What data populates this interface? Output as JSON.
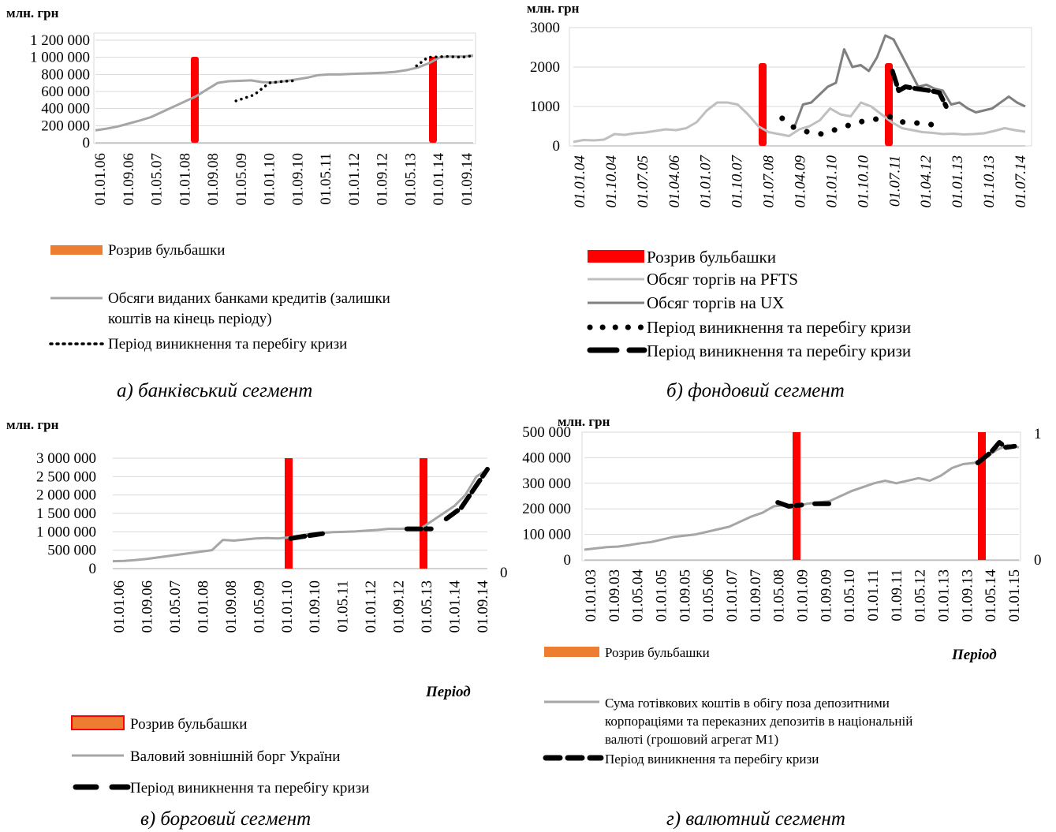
{
  "chart_data": [
    {
      "type": "line",
      "panel": "a",
      "unit_label": "млн. грн",
      "caption": "а) банківський сегмент",
      "yticks": [
        "0",
        "200 000",
        "400 000",
        "600 000",
        "800 000",
        "1 000 000",
        "1 200 000"
      ],
      "ylim": [
        0,
        1200000
      ],
      "xticks": [
        "01.01.06",
        "01.09.06",
        "01.05.07",
        "01.01.08",
        "01.09.08",
        "01.05.09",
        "01.01.10",
        "01.09.10",
        "01.05.11",
        "01.01.12",
        "01.09.12",
        "01.05.13",
        "01.01.14",
        "01.09.14"
      ],
      "bubble_bursts": [
        "01.09.08",
        "01.01.14"
      ],
      "series": [
        {
          "name": "Обсяги виданих банками кредитів (залишки коштів на кінець періоду)",
          "style": "line",
          "color": "#a6a6a6",
          "values": [
            145000,
            165000,
            190000,
            225000,
            260000,
            300000,
            360000,
            420000,
            480000,
            540000,
            620000,
            700000,
            720000,
            725000,
            730000,
            710000,
            705000,
            720000,
            740000,
            760000,
            790000,
            800000,
            800000,
            805000,
            810000,
            815000,
            820000,
            830000,
            850000,
            880000,
            930000,
            1000000,
            1010000,
            1010000,
            1020000
          ]
        },
        {
          "name": "Період виникнення та перебігу кризи",
          "style": "dotted",
          "color": "#000000",
          "segments": [
            [
              [
                0.372,
                490000
              ],
              [
                0.42,
                560000
              ],
              [
                0.46,
                700000
              ],
              [
                0.5,
                720000
              ],
              [
                0.53,
                725000
              ]
            ],
            [
              [
                0.85,
                900000
              ],
              [
                0.88,
                1000000
              ],
              [
                0.93,
                1010000
              ],
              [
                0.97,
                1000000
              ],
              [
                1.0,
                1020000
              ]
            ]
          ]
        }
      ],
      "legend": [
        "Розрив бульбашки",
        "Обсяги виданих банками кредитів (залишки коштів на кінець періоду)",
        "Період виникнення та перебігу кризи"
      ]
    },
    {
      "type": "line",
      "panel": "b",
      "unit_label": "млн. грн",
      "caption": "б) фондовий сегмент",
      "yticks": [
        "0",
        "1000",
        "2000",
        "3000"
      ],
      "ylim": [
        0,
        3000
      ],
      "xticks": [
        "01.01.04",
        "01.10.04",
        "01.07.05",
        "01.04.06",
        "01.01.07",
        "01.10.07",
        "01.07.08",
        "01.04.09",
        "01.01.10",
        "01.10.10",
        "01.07.11",
        "01.04.12",
        "01.01.13",
        "01.10.13",
        "01.07.14"
      ],
      "bubble_bursts": [
        "01.07.08",
        "01.07.11"
      ],
      "series": [
        {
          "name": "Обсяг торгів на PFTS",
          "style": "line",
          "color": "#bfbfbf",
          "values": [
            100,
            150,
            140,
            160,
            300,
            280,
            320,
            340,
            380,
            420,
            400,
            450,
            600,
            900,
            1100,
            1100,
            1050,
            800,
            500,
            350,
            300,
            250,
            420,
            500,
            650,
            950,
            800,
            750,
            1100,
            1000,
            800,
            600,
            450,
            400,
            350,
            330,
            300,
            310,
            290,
            300,
            320,
            380,
            450,
            400,
            360
          ]
        },
        {
          "name": "Обсяг торгів на UX",
          "style": "line",
          "color": "#7f7f7f",
          "values": [
            500,
            1050,
            1100,
            1300,
            1500,
            1600,
            2450,
            2000,
            2050,
            1900,
            2250,
            2800,
            2700,
            2300,
            1900,
            1500,
            1550,
            1450,
            1400,
            1050,
            1100,
            950,
            850,
            900,
            950,
            1100,
            1250,
            1100,
            1000
          ]
        },
        {
          "name": "Період виникнення та перебігу кризи",
          "style": "dots",
          "color": "#000000",
          "points": [
            [
              0.462,
              700
            ],
            [
              0.49,
              450
            ],
            [
              0.52,
              350
            ],
            [
              0.55,
              300
            ],
            [
              0.63,
              600
            ],
            [
              0.705,
              750
            ],
            [
              0.73,
              600
            ],
            [
              0.76,
              580
            ],
            [
              0.79,
              550
            ],
            [
              0.82,
              400
            ]
          ]
        },
        {
          "name": "Період виникнення та перебігу кризи",
          "style": "dashed",
          "color": "#000000",
          "points": [
            [
              0.706,
              1900
            ],
            [
              0.72,
              1400
            ],
            [
              0.735,
              1500
            ],
            [
              0.76,
              1450
            ],
            [
              0.79,
              1400
            ],
            [
              0.81,
              1350
            ],
            [
              0.825,
              1000
            ]
          ]
        }
      ],
      "legend": [
        "Розрив бульбашки",
        "Обсяг торгів на PFTS",
        "Обсяг торгів на UX",
        "Період виникнення та перебігу кризи",
        "Період виникнення та перебігу кризи"
      ]
    },
    {
      "type": "line",
      "panel": "c",
      "unit_label": "млн. грн",
      "caption": "в) борговий сегмент",
      "x_title": "Період",
      "yticks": [
        "0",
        "500 000",
        "1 000 000",
        "1 500 000",
        "2 000 000",
        "2 500 000",
        "3 000 000"
      ],
      "ylim": [
        0,
        3000000
      ],
      "secondary_y_ticks": [
        "0"
      ],
      "xticks": [
        "01.01.06",
        "01.09.06",
        "01.05.07",
        "01.01.08",
        "01.09.08",
        "01.05.09",
        "01.01.10",
        "01.09.10",
        "01.05.11",
        "01.01.12",
        "01.09.12",
        "01.05.13",
        "01.01.14",
        "01.09.14"
      ],
      "bubble_bursts": [
        "01.01.10",
        "01.05.13"
      ],
      "series": [
        {
          "name": "Валовий зовнішній борг України",
          "style": "line",
          "color": "#a6a6a6",
          "values": [
            200000,
            210000,
            230000,
            260000,
            300000,
            340000,
            380000,
            420000,
            460000,
            500000,
            780000,
            760000,
            790000,
            820000,
            830000,
            820000,
            850000,
            900000,
            950000,
            970000,
            990000,
            1000000,
            1010000,
            1030000,
            1050000,
            1080000,
            1080000,
            1090000,
            1100000,
            1300000,
            1500000,
            1700000,
            2000000,
            2500000,
            2700000
          ]
        },
        {
          "name": "Період виникнення та перебігу кризи",
          "style": "dashed",
          "color": "#000000",
          "segments": [
            [
              [
                0.475,
                820000
              ],
              [
                0.52,
                890000
              ],
              [
                0.56,
                950000
              ]
            ],
            [
              [
                0.785,
                1080000
              ],
              [
                0.85,
                1080000
              ]
            ],
            [
              [
                0.89,
                1350000
              ],
              [
                0.93,
                1650000
              ],
              [
                0.96,
                2100000
              ],
              [
                1.0,
                2700000
              ]
            ]
          ]
        }
      ],
      "legend": [
        "Розрив бульбашки",
        "Валовий зовнішній борг України",
        "Період виникнення та перебігу кризи"
      ]
    },
    {
      "type": "line",
      "panel": "d",
      "unit_label": "млн. грн",
      "caption": "г) валютний сегмент",
      "x_title": "Період",
      "yticks": [
        "0",
        "100 000",
        "200 000",
        "300 000",
        "400 000",
        "500 000"
      ],
      "ylim": [
        0,
        500000
      ],
      "secondary_y_ticks": [
        "0",
        "1"
      ],
      "xticks": [
        "01.01.03",
        "01.09.03",
        "01.05.04",
        "01.01.05",
        "01.09.05",
        "01.05.06",
        "01.01.07",
        "01.09.07",
        "01.05.08",
        "01.01.09",
        "01.09.09",
        "01.05.10",
        "01.01.11",
        "01.09.11",
        "01.05.12",
        "01.01.13",
        "01.09.13",
        "01.05.14",
        "01.01.15"
      ],
      "bubble_bursts": [
        "01.09.08",
        "01.01.14"
      ],
      "series": [
        {
          "name": "Сума готівкових коштів в обігу поза депозитними корпораціями та переказних депозитів в національній валюті (грошовий агрегат М1)",
          "style": "line",
          "color": "#a6a6a6",
          "values": [
            40000,
            45000,
            50000,
            52000,
            58000,
            65000,
            70000,
            80000,
            90000,
            95000,
            100000,
            110000,
            120000,
            130000,
            150000,
            170000,
            185000,
            210000,
            215000,
            210000,
            220000,
            225000,
            230000,
            250000,
            270000,
            285000,
            300000,
            310000,
            300000,
            310000,
            320000,
            310000,
            330000,
            360000,
            375000,
            380000,
            400000,
            430000,
            450000,
            440000
          ]
        },
        {
          "name": "Період виникнення та перебігу кризи",
          "style": "dashed",
          "color": "#000000",
          "segments": [
            [
              [
                0.445,
                225000
              ],
              [
                0.47,
                210000
              ],
              [
                0.5,
                215000
              ]
            ],
            [
              [
                0.53,
                220000
              ],
              [
                0.57,
                220000
              ]
            ],
            [
              [
                0.905,
                380000
              ],
              [
                0.935,
                420000
              ],
              [
                0.955,
                460000
              ],
              [
                0.97,
                440000
              ],
              [
                0.99,
                445000
              ]
            ]
          ]
        }
      ],
      "legend": [
        "Розрив бульбашки",
        "Сума готівкових коштів в обігу поза депозитними корпораціями та переказних депозитів в національній валюті (грошовий агрегат М1)",
        "Період виникнення та перебігу кризи"
      ]
    }
  ],
  "legend_text": {
    "a": [
      "Розрив бульбашки",
      "Обсяги виданих банками кредитів (залишки",
      "коштів на кінець періоду)",
      "Період виникнення та перебігу кризи"
    ],
    "b": [
      "Розрив бульбашки",
      "Обсяг торгів на PFTS",
      "Обсяг торгів на UX",
      "Період виникнення та перебігу кризи",
      "Період виникнення та перебігу кризи"
    ],
    "c": [
      "Розрив бульбашки",
      "Валовий зовнішній борг України",
      "Період виникнення та перебігу кризи"
    ],
    "d": [
      "Розрив бульбашки",
      "Сума готівкових коштів в обігу поза депозитними",
      "корпораціями та переказних депозитів в національній",
      "валюті (грошовий агрегат М1)",
      "Період виникнення та перебігу кризи"
    ]
  },
  "colors": {
    "burst": "#ff0000",
    "burst_legend_orange": "#ed7d31",
    "series_light": "#bfbfbf",
    "series_mid": "#a6a6a6",
    "series_dark": "#7f7f7f",
    "crisis": "#000000"
  }
}
